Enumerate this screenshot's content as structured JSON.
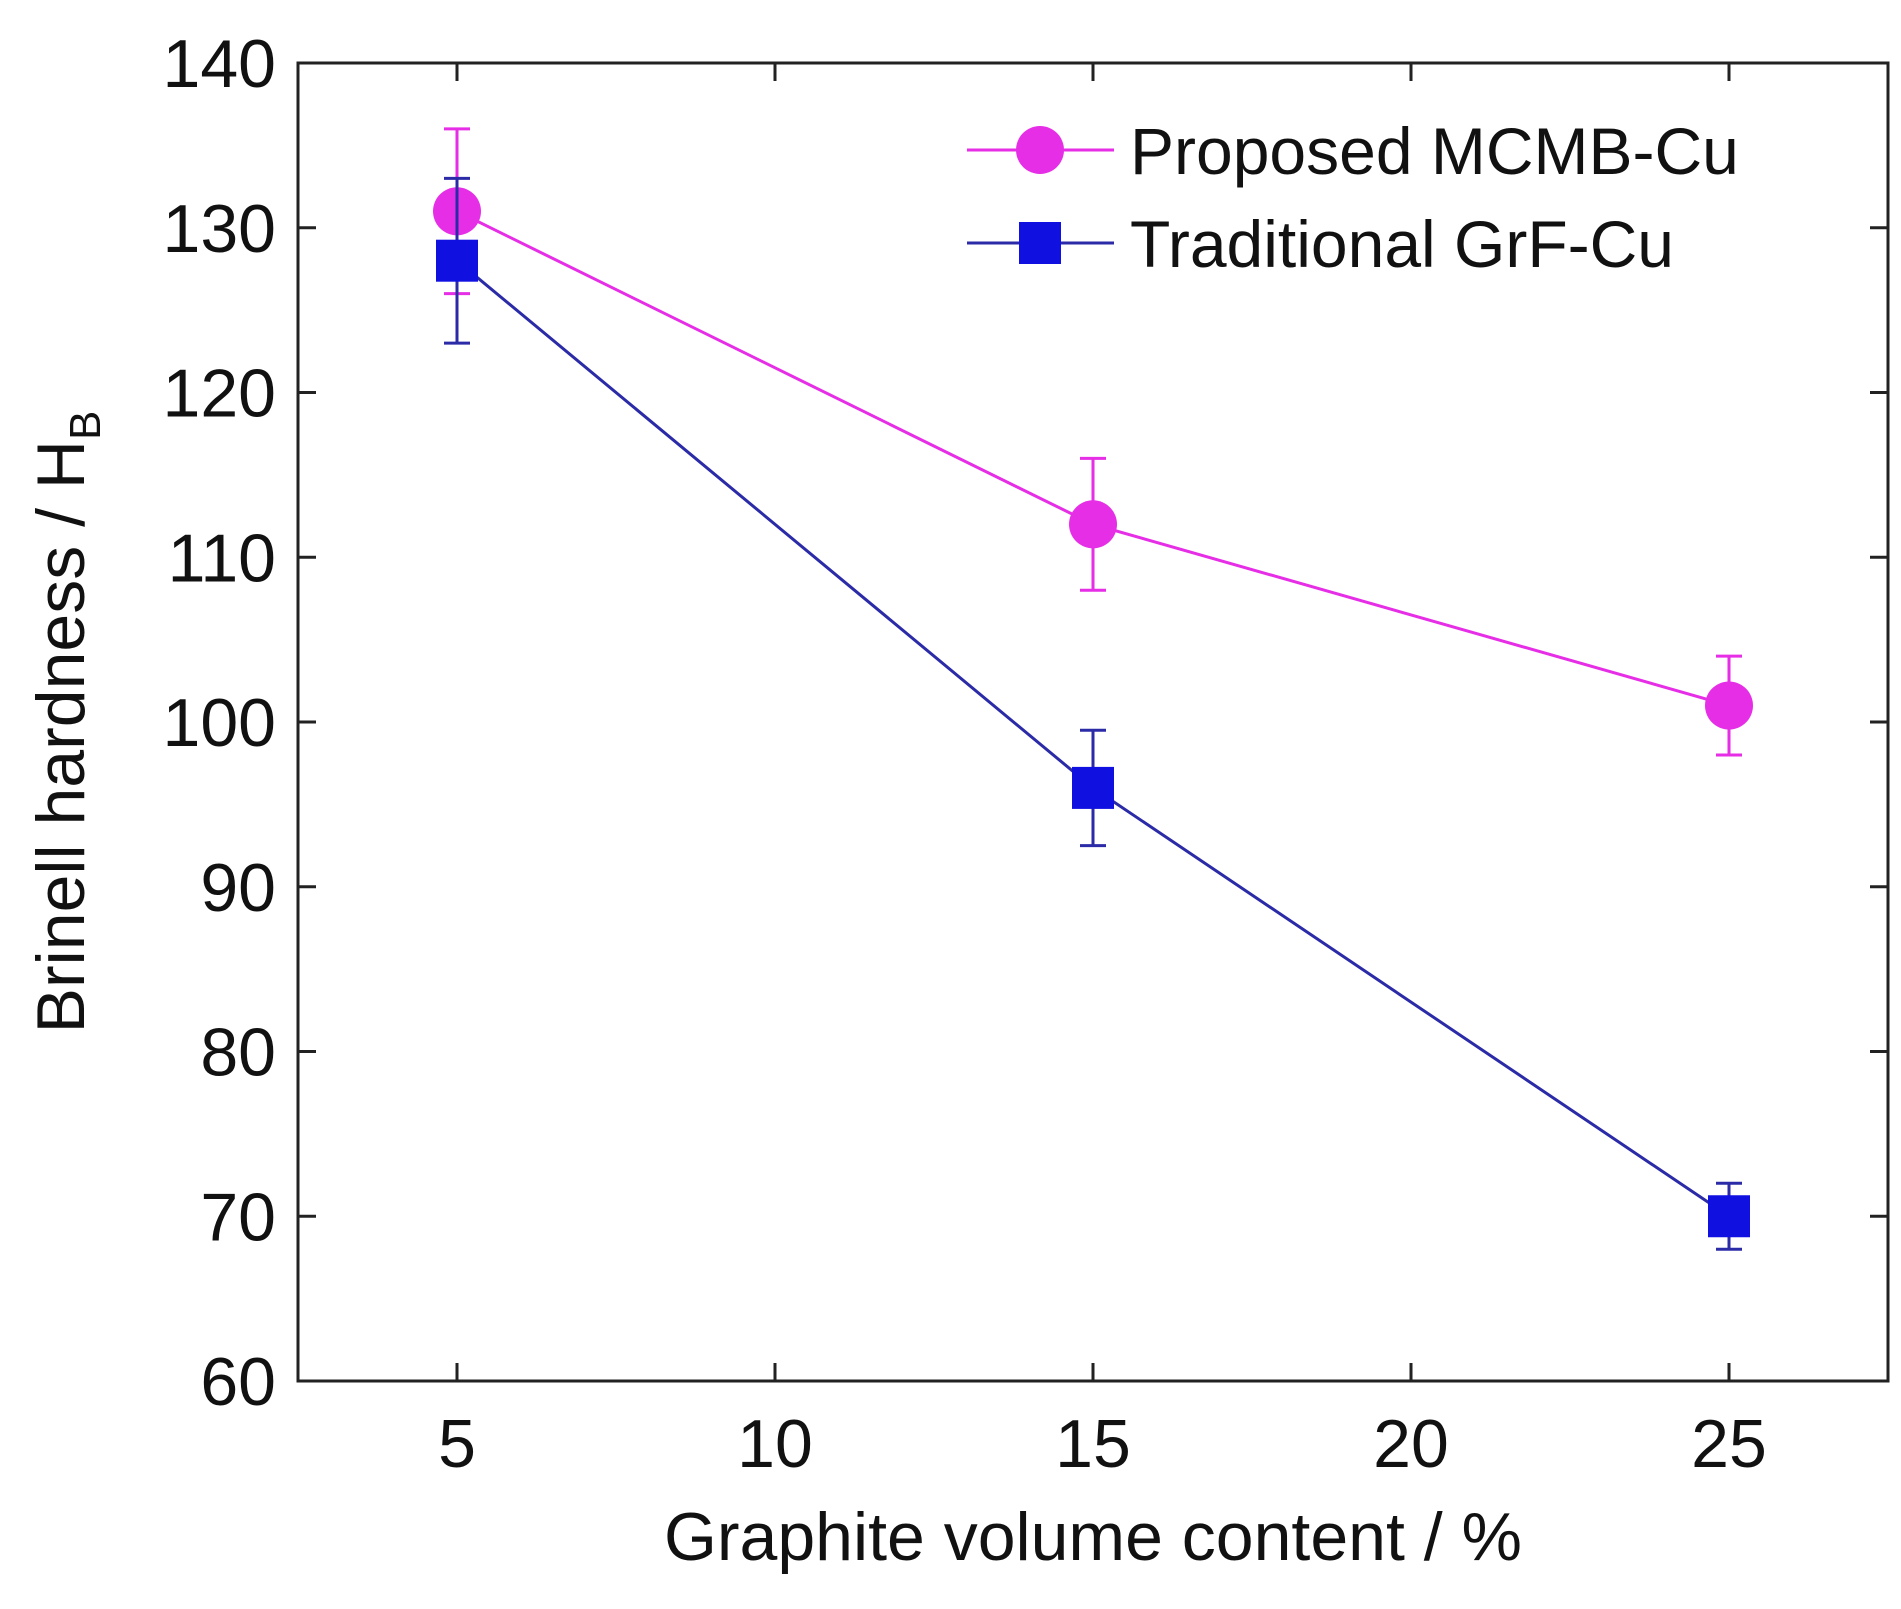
{
  "chart_data": {
    "type": "line",
    "title": "",
    "xlabel": "Graphite volume content / %",
    "ylabel": {
      "main": "Brinell hardness / H",
      "subscript": "B"
    },
    "xlim": [
      2.5,
      27.5
    ],
    "ylim": [
      60,
      140
    ],
    "x_ticks": [
      5,
      10,
      15,
      20,
      25
    ],
    "x_tick_labels": [
      "5",
      "10",
      "15",
      "20",
      "25"
    ],
    "y_ticks": [
      60,
      70,
      80,
      90,
      100,
      110,
      120,
      130,
      140
    ],
    "y_tick_labels": [
      "60",
      "70",
      "80",
      "90",
      "100",
      "110",
      "120",
      "130",
      "140"
    ],
    "grid": false,
    "legend_position": "top-right",
    "series": [
      {
        "name": "Proposed MCMB-Cu",
        "color": "#e62ee6",
        "marker": "circle",
        "x": [
          5,
          15,
          25
        ],
        "y": [
          131,
          112,
          101
        ],
        "y_err": [
          5,
          4,
          3
        ]
      },
      {
        "name": "Traditional GrF-Cu",
        "color": "#1010e0",
        "line_color": "#2b2ba8",
        "marker": "square",
        "x": [
          5,
          15,
          25
        ],
        "y": [
          128,
          96,
          70
        ],
        "y_err": [
          5,
          3.5,
          2
        ]
      }
    ]
  }
}
